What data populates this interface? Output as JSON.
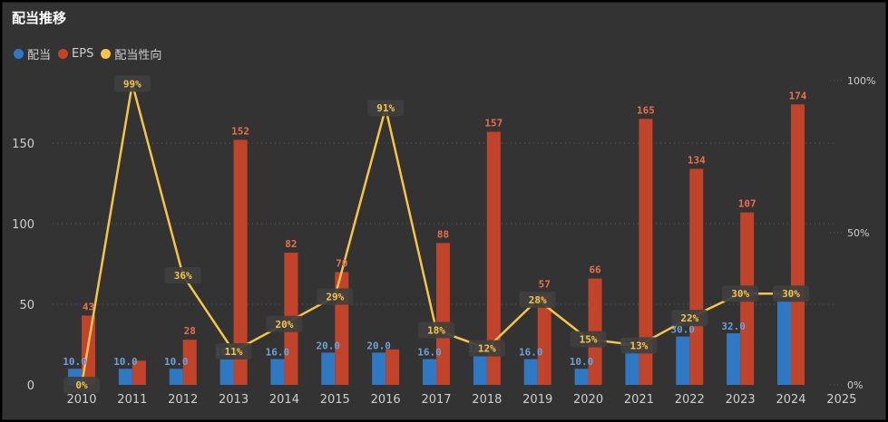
{
  "title": "配当推移",
  "legend": [
    {
      "label": "配当",
      "color": "#2f78c4"
    },
    {
      "label": "EPS",
      "color": "#c0432a"
    },
    {
      "label": "配当性向",
      "color": "#f6c448"
    }
  ],
  "colors": {
    "dividend": "#2f78c4",
    "eps": "#c0432a",
    "payout": "#f6c448",
    "background": "#333333",
    "label_box": "#3f3f3f"
  },
  "chart_data": {
    "type": "bar",
    "title": "配当推移",
    "categories": [
      "2010",
      "2011",
      "2012",
      "2013",
      "2014",
      "2015",
      "2016",
      "2017",
      "2018",
      "2019",
      "2020",
      "2021",
      "2022",
      "2023",
      "2024",
      "2025"
    ],
    "series": [
      {
        "name": "配当",
        "type": "bar",
        "axis": "left",
        "values": [
          10.0,
          10.0,
          10.0,
          16.0,
          16.0,
          20.0,
          20.0,
          16.0,
          18.0,
          16.0,
          10.0,
          22.0,
          30.0,
          32.0,
          52.0,
          null
        ],
        "labels": [
          "10.0",
          "10.0",
          "10.0",
          "16.0",
          "16.0",
          "20.0",
          "20.0",
          "16.0",
          "18.0",
          "16.0",
          "10.0",
          "22.0",
          "30.0",
          "32.0",
          "52.0",
          ""
        ]
      },
      {
        "name": "EPS",
        "type": "bar",
        "axis": "left",
        "values": [
          43,
          15,
          28,
          152,
          82,
          70,
          22,
          88,
          157,
          57,
          66,
          165,
          134,
          107,
          174,
          null
        ],
        "labels": [
          "43",
          "",
          "28",
          "152",
          "82",
          "70",
          "",
          "88",
          "157",
          "57",
          "66",
          "165",
          "134",
          "107",
          "174",
          ""
        ]
      },
      {
        "name": "配当性向",
        "type": "line",
        "axis": "right",
        "values": [
          0,
          99,
          36,
          11,
          20,
          29,
          91,
          18,
          12,
          28,
          15,
          13,
          22,
          30,
          30,
          null
        ],
        "labels": [
          "0%",
          "99%",
          "36%",
          "11%",
          "20%",
          "29%",
          "91%",
          "18%",
          "12%",
          "28%",
          "15%",
          "13%",
          "22%",
          "30%",
          "30%",
          ""
        ]
      }
    ],
    "y_left": {
      "ticks": [
        0,
        50,
        100,
        150
      ],
      "tick_labels": [
        "0",
        "50",
        "100",
        "150"
      ],
      "range": [
        0,
        190
      ]
    },
    "y_right": {
      "ticks": [
        0,
        50,
        100
      ],
      "tick_labels": [
        "0%",
        "50%",
        "100%"
      ],
      "range": [
        0,
        100
      ]
    },
    "grid": true,
    "legend_position": "top-left"
  }
}
